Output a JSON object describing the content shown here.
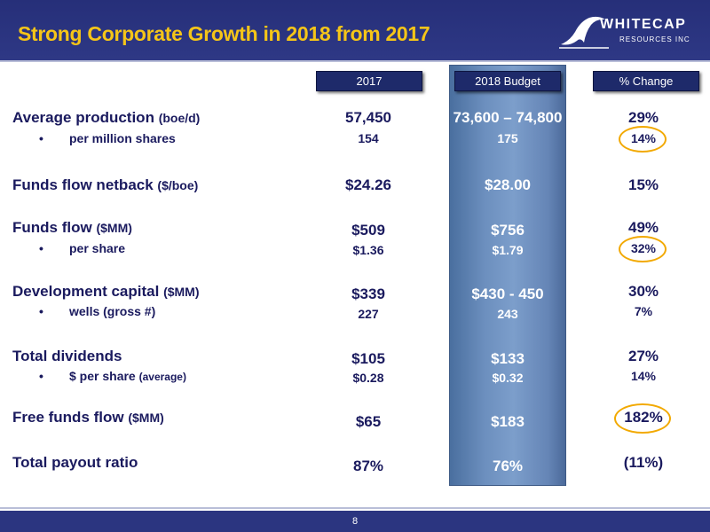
{
  "title": "Strong Corporate Growth in 2018 from 2017",
  "logo": {
    "line1": "WHITECAP",
    "line2": "RESOURCES INC"
  },
  "headers": {
    "y2017": "2017",
    "y2018": "2018 Budget",
    "change": "% Change"
  },
  "rows": [
    {
      "label": "Average production",
      "unit": "(boe/d)",
      "v2017": "57,450",
      "v2018": "73,600 – 74,800",
      "change": "29%",
      "sub": {
        "bullet": "•",
        "label": "per million shares",
        "unit": "",
        "v2017": "154",
        "v2018": "175",
        "change": "14%"
      }
    },
    {
      "label": "Funds flow netback",
      "unit": "($/boe)",
      "v2017": "$24.26",
      "v2018": "$28.00",
      "change": "15%"
    },
    {
      "label": "Funds flow",
      "unit": "($MM)",
      "v2017": "$509",
      "v2018": "$756",
      "change": "49%",
      "sub": {
        "bullet": "•",
        "label": "per share",
        "unit": "",
        "v2017": "$1.36",
        "v2018": "$1.79",
        "change": "32%"
      }
    },
    {
      "label": "Development capital",
      "unit": "($MM)",
      "v2017": "$339",
      "v2018": "$430 - 450",
      "change": "30%",
      "sub": {
        "bullet": "•",
        "label": "wells (gross #)",
        "unit": "",
        "v2017": "227",
        "v2018": "243",
        "change": "7%"
      }
    },
    {
      "label": "Total dividends",
      "unit": "",
      "v2017": "$105",
      "v2018": "$133",
      "change": "27%",
      "sub": {
        "bullet": "•",
        "label": "$ per share",
        "unit": "(average)",
        "v2017": "$0.28",
        "v2018": "$0.32",
        "change": "14%"
      }
    },
    {
      "label": "Free funds flow",
      "unit": "($MM)",
      "v2017": "$65",
      "v2018": "$183",
      "change": "182%"
    },
    {
      "label": "Total payout ratio",
      "unit": "",
      "v2017": "87%",
      "v2018": "76%",
      "change": "(11%)"
    }
  ],
  "page_number": "8",
  "colors": {
    "header_bg": "#262f79",
    "title": "#f5c518",
    "text": "#1a1a5e",
    "highlight_circle": "#f2a900",
    "budget_column": "#6c8fbe"
  }
}
